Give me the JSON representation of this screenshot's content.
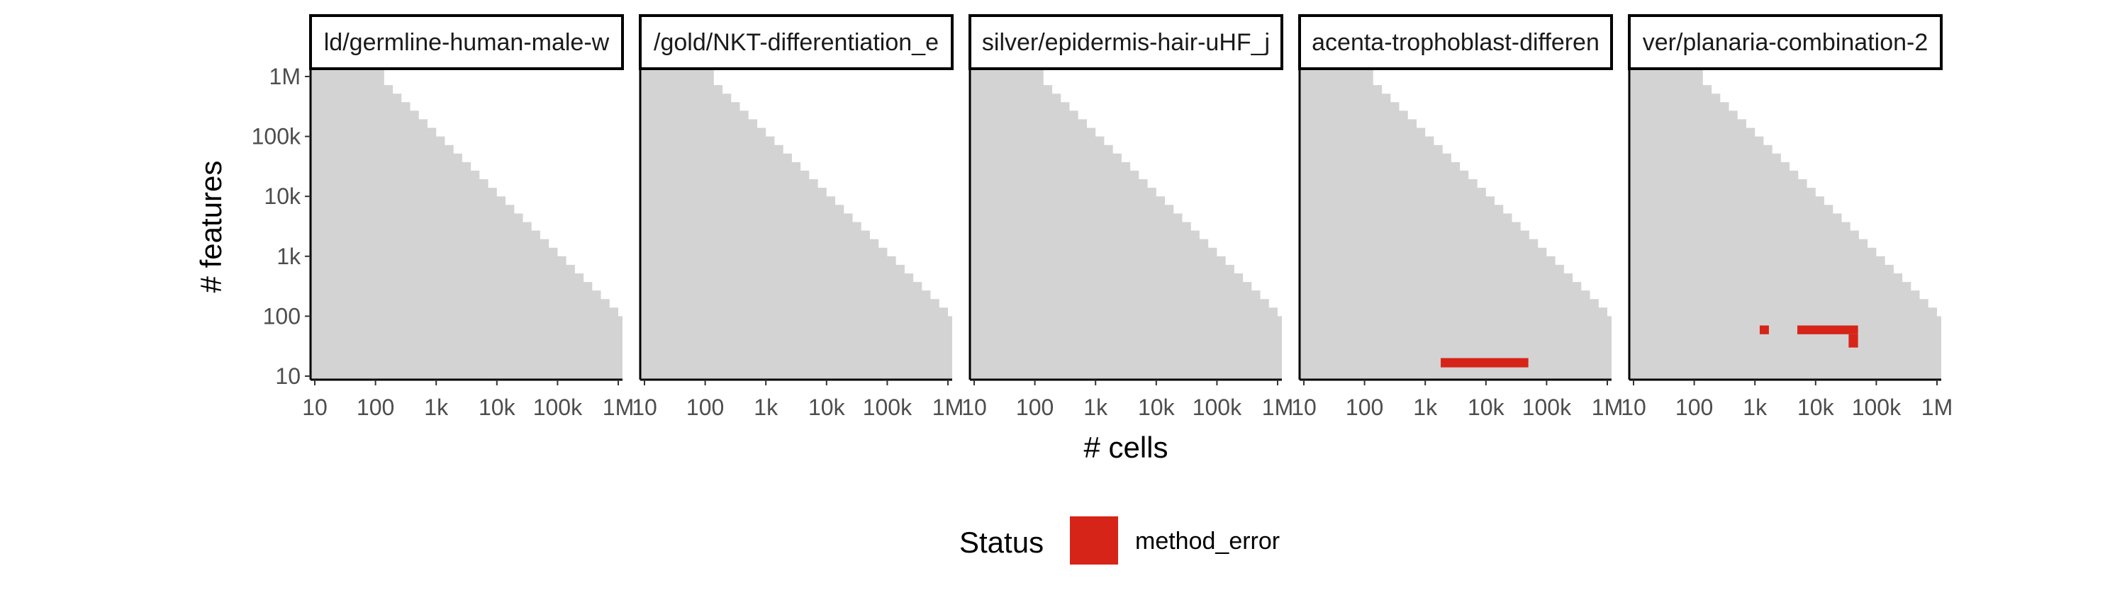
{
  "chart_data": {
    "type": "heatmap",
    "x_axis": {
      "label": "# cells",
      "scale": "log10",
      "range": [
        10,
        1000000
      ],
      "tick_values": [
        10,
        100,
        1000,
        10000,
        100000,
        1000000
      ],
      "tick_labels": [
        "10",
        "100",
        "1k",
        "10k",
        "100k",
        "1M"
      ]
    },
    "y_axis": {
      "label": "# features",
      "scale": "log10",
      "range": [
        10,
        1000000
      ],
      "tick_values": [
        10,
        100,
        1000,
        10000,
        100000,
        1000000
      ],
      "tick_labels": [
        "10",
        "100",
        "1k",
        "10k",
        "100k",
        "1M"
      ]
    },
    "grid": false,
    "background_color": "#d3d3d3",
    "background_region": "cells x features <= ~1e8 (staircase boundary)",
    "legend": {
      "title": "Status",
      "position": "bottom",
      "entries": [
        {
          "label": "method_error",
          "color": "#d62418"
        }
      ]
    },
    "panels": [
      {
        "strip_label": "ld/germline-human-male-w",
        "method_error": []
      },
      {
        "strip_label": "/gold/NKT-differentiation_e",
        "method_error": []
      },
      {
        "strip_label": "silver/epidermis-hair-uHF_j",
        "method_error": []
      },
      {
        "strip_label": "acenta-trophoblast-differen",
        "method_error": [
          {
            "cells": [
              1800,
              50000
            ],
            "features": [
              14,
              20
            ]
          }
        ]
      },
      {
        "strip_label": "ver/planaria-combination-2",
        "method_error": [
          {
            "cells": [
              1200,
              1700
            ],
            "features": [
              50,
              70
            ]
          },
          {
            "cells": [
              5000,
              50000
            ],
            "features": [
              50,
              70
            ]
          },
          {
            "cells": [
              35000,
              50000
            ],
            "features": [
              30,
              50
            ]
          }
        ]
      }
    ]
  }
}
